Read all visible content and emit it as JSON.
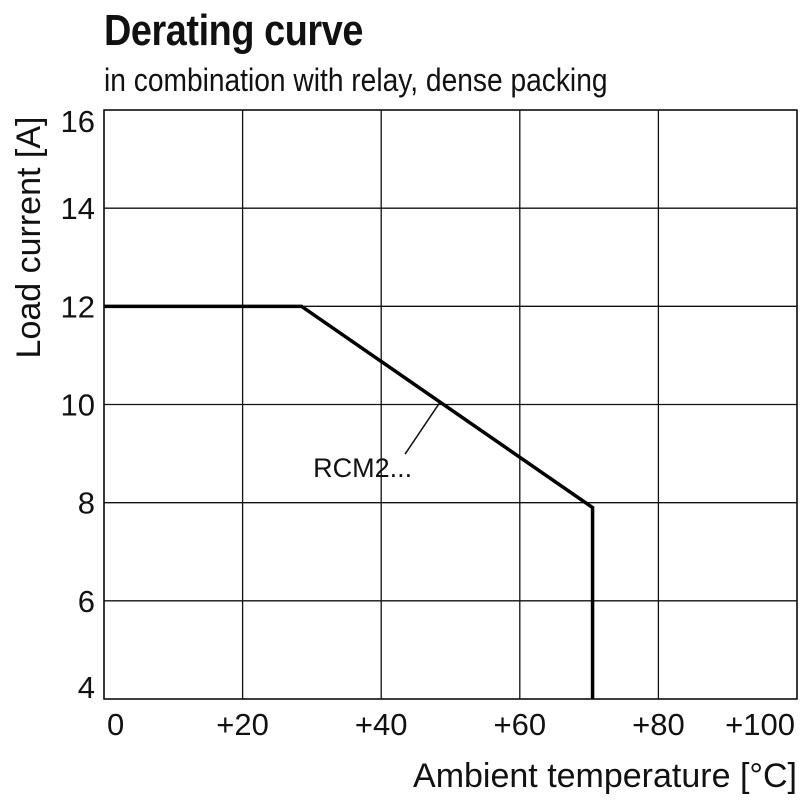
{
  "chart_data": {
    "type": "line",
    "title": "Derating curve",
    "subtitle": "in combination with relay, dense packing",
    "xlabel": "Ambient temperature [°C]",
    "ylabel": "Load current [A]",
    "xlim": [
      0,
      100
    ],
    "ylim": [
      4,
      16
    ],
    "x_ticks": [
      0,
      20,
      40,
      60,
      80,
      100
    ],
    "x_tick_labels": [
      "0",
      "+20",
      "+40",
      "+60",
      "+80",
      "+100"
    ],
    "y_ticks": [
      4,
      6,
      8,
      10,
      12,
      14,
      16
    ],
    "y_tick_labels": [
      "4",
      "6",
      "8",
      "10",
      "12",
      "14",
      "16"
    ],
    "grid": true,
    "series": [
      {
        "x": [
          0,
          28.5,
          70.5,
          70.5
        ],
        "y": [
          12,
          12,
          7.9,
          4
        ],
        "color": "#000000"
      }
    ],
    "annotations": [
      {
        "text": "RCM2...",
        "target_x": 48.5,
        "target_y": 10.05
      }
    ]
  }
}
